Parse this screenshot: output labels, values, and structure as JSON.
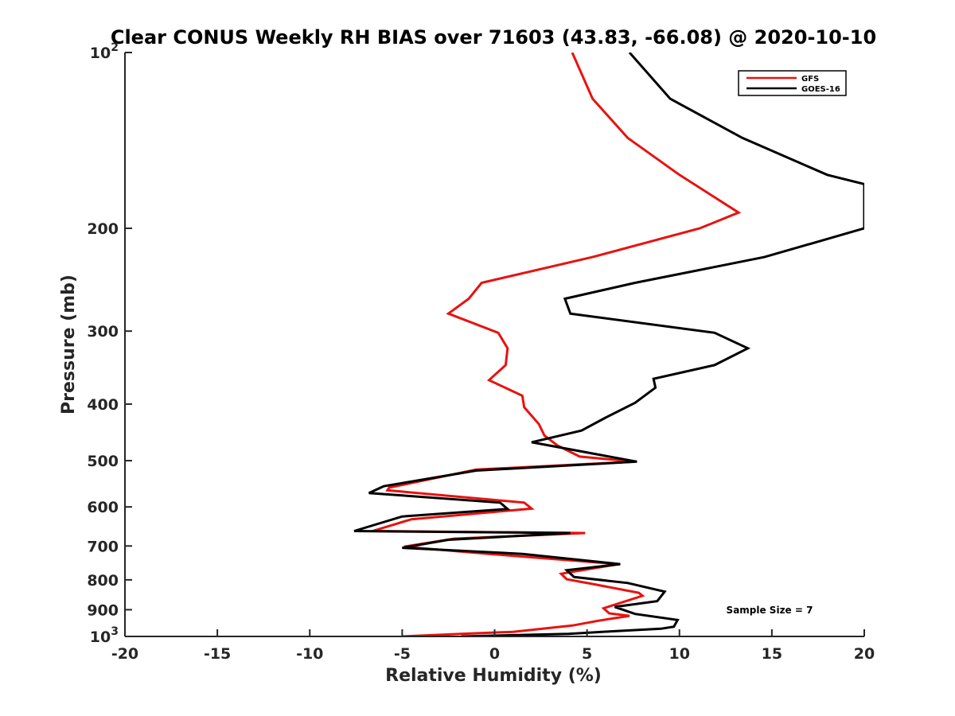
{
  "chart_data": {
    "type": "line",
    "title": "Clear CONUS Weekly RH BIAS over 71603 (43.83, -66.08) @ 2020-10-10",
    "xlabel": "Relative Humidity (%)",
    "ylabel": "Pressure (mb)",
    "xlim": [
      -20,
      20
    ],
    "ylim": [
      100,
      1000
    ],
    "y_scale": "log",
    "y_reversed": true,
    "grid": false,
    "legend_position": "top-right",
    "x_ticks": [
      "-20",
      "-15",
      "-10",
      "-5",
      "0",
      "5",
      "10",
      "15",
      "20"
    ],
    "y_ticks": [
      {
        "value": 100,
        "base": "10",
        "exp": "2"
      },
      {
        "value": 200,
        "base": "200",
        "exp": ""
      },
      {
        "value": 300,
        "base": "300",
        "exp": ""
      },
      {
        "value": 400,
        "base": "400",
        "exp": ""
      },
      {
        "value": 500,
        "base": "500",
        "exp": ""
      },
      {
        "value": 600,
        "base": "600",
        "exp": ""
      },
      {
        "value": 700,
        "base": "700",
        "exp": ""
      },
      {
        "value": 800,
        "base": "800",
        "exp": ""
      },
      {
        "value": 900,
        "base": "900",
        "exp": ""
      },
      {
        "value": 1000,
        "base": "10",
        "exp": "3"
      }
    ],
    "annotation": "Sample Size = 7",
    "series": [
      {
        "name": "GFS",
        "color": "#e8120f",
        "points": [
          {
            "x": 4.2,
            "p": 100
          },
          {
            "x": 5.3,
            "p": 120
          },
          {
            "x": 7.2,
            "p": 140
          },
          {
            "x": 10.0,
            "p": 162
          },
          {
            "x": 13.2,
            "p": 188
          },
          {
            "x": 11.1,
            "p": 200
          },
          {
            "x": 5.3,
            "p": 224
          },
          {
            "x": -0.7,
            "p": 248
          },
          {
            "x": -1.4,
            "p": 264
          },
          {
            "x": -2.5,
            "p": 280
          },
          {
            "x": 0.2,
            "p": 302
          },
          {
            "x": 0.7,
            "p": 321
          },
          {
            "x": 0.6,
            "p": 343
          },
          {
            "x": -0.3,
            "p": 364
          },
          {
            "x": 1.5,
            "p": 387
          },
          {
            "x": 1.6,
            "p": 405
          },
          {
            "x": 2.4,
            "p": 433
          },
          {
            "x": 2.7,
            "p": 453
          },
          {
            "x": 3.4,
            "p": 471
          },
          {
            "x": 4.6,
            "p": 492
          },
          {
            "x": 7.6,
            "p": 502
          },
          {
            "x": -1.0,
            "p": 518
          },
          {
            "x": -5.7,
            "p": 556
          },
          {
            "x": -5.8,
            "p": 562
          },
          {
            "x": 1.6,
            "p": 590
          },
          {
            "x": 2.0,
            "p": 604
          },
          {
            "x": -4.5,
            "p": 630
          },
          {
            "x": -6.6,
            "p": 660
          },
          {
            "x": 4.9,
            "p": 665
          },
          {
            "x": -2.2,
            "p": 680
          },
          {
            "x": -4.9,
            "p": 702
          },
          {
            "x": -0.3,
            "p": 722
          },
          {
            "x": 6.7,
            "p": 752
          },
          {
            "x": 3.6,
            "p": 781
          },
          {
            "x": 3.9,
            "p": 798
          },
          {
            "x": 5.2,
            "p": 812
          },
          {
            "x": 7.8,
            "p": 842
          },
          {
            "x": 8.0,
            "p": 852
          },
          {
            "x": 5.9,
            "p": 895
          },
          {
            "x": 6.2,
            "p": 913
          },
          {
            "x": 7.3,
            "p": 922
          },
          {
            "x": 5.6,
            "p": 940
          },
          {
            "x": 4.2,
            "p": 958
          },
          {
            "x": 1.0,
            "p": 982
          },
          {
            "x": -1.8,
            "p": 990
          },
          {
            "x": -5.0,
            "p": 1000
          }
        ]
      },
      {
        "name": "GOES-16",
        "color": "#000000",
        "points": [
          {
            "x": 7.3,
            "p": 100
          },
          {
            "x": 9.5,
            "p": 120
          },
          {
            "x": 13.4,
            "p": 140
          },
          {
            "x": 18.0,
            "p": 162
          },
          {
            "x": 20.0,
            "p": 168
          },
          {
            "x": 20.0,
            "p": 200
          },
          {
            "x": 14.6,
            "p": 224
          },
          {
            "x": 7.6,
            "p": 248
          },
          {
            "x": 3.8,
            "p": 264
          },
          {
            "x": 4.1,
            "p": 280
          },
          {
            "x": 11.9,
            "p": 302
          },
          {
            "x": 13.7,
            "p": 321
          },
          {
            "x": 11.9,
            "p": 343
          },
          {
            "x": 8.6,
            "p": 362
          },
          {
            "x": 8.7,
            "p": 375
          },
          {
            "x": 7.6,
            "p": 398
          },
          {
            "x": 6.0,
            "p": 422
          },
          {
            "x": 4.7,
            "p": 444
          },
          {
            "x": 2.0,
            "p": 465
          },
          {
            "x": 7.7,
            "p": 502
          },
          {
            "x": -1.0,
            "p": 520
          },
          {
            "x": -6.0,
            "p": 553
          },
          {
            "x": -6.8,
            "p": 568
          },
          {
            "x": 0.3,
            "p": 590
          },
          {
            "x": 0.7,
            "p": 605
          },
          {
            "x": -5.0,
            "p": 623
          },
          {
            "x": -7.6,
            "p": 660
          },
          {
            "x": 4.1,
            "p": 665
          },
          {
            "x": -2.5,
            "p": 683
          },
          {
            "x": -5.0,
            "p": 705
          },
          {
            "x": 1.5,
            "p": 722
          },
          {
            "x": 6.8,
            "p": 752
          },
          {
            "x": 3.9,
            "p": 770
          },
          {
            "x": 4.3,
            "p": 791
          },
          {
            "x": 7.2,
            "p": 810
          },
          {
            "x": 9.2,
            "p": 838
          },
          {
            "x": 8.8,
            "p": 870
          },
          {
            "x": 6.5,
            "p": 890
          },
          {
            "x": 7.6,
            "p": 915
          },
          {
            "x": 9.9,
            "p": 937
          },
          {
            "x": 9.7,
            "p": 962
          },
          {
            "x": 9.0,
            "p": 970
          },
          {
            "x": 6.3,
            "p": 980
          },
          {
            "x": 4.0,
            "p": 990
          },
          {
            "x": -1.8,
            "p": 1000
          }
        ]
      }
    ]
  }
}
